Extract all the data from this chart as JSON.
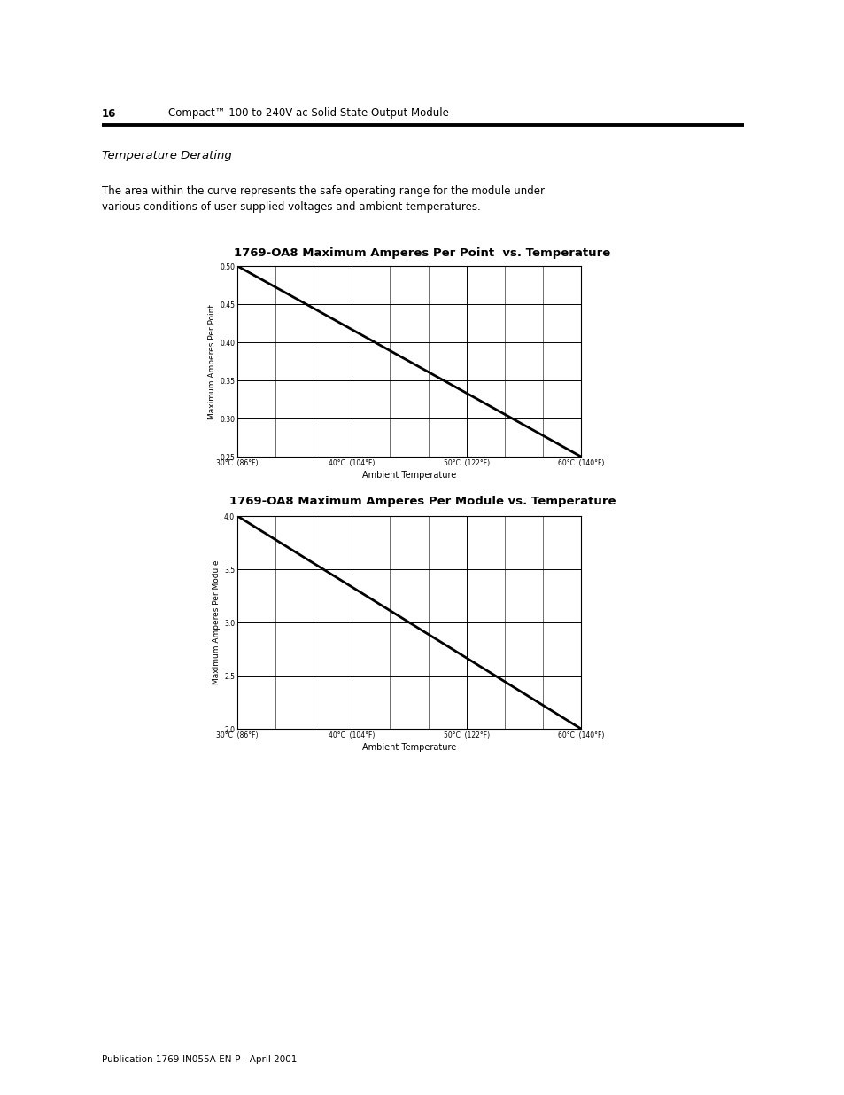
{
  "page_number": "16",
  "page_header": "Compact™ 100 to 240V ac Solid State Output Module",
  "section_title": "Temperature Derating",
  "body_line1": "The area within the curve represents the safe operating range for the module under",
  "body_line2": "various conditions of user supplied voltages and ambient temperatures.",
  "chart1": {
    "title": "1769-OA8 Maximum Amperes Per Point  vs. Temperature",
    "xlabel": "Ambient Temperature",
    "ylabel": "Maximum Amperes Per Point",
    "x_data": [
      30,
      60
    ],
    "y_data": [
      0.5,
      0.25
    ],
    "xtick_positions": [
      30,
      40,
      50,
      60
    ],
    "xtick_labels": [
      "30°C  (86°F)",
      "40°C  (104°F)",
      "50°C  (122°F)",
      "60°C  (140°F)"
    ],
    "ytick_positions": [
      0.25,
      0.3,
      0.35,
      0.4,
      0.45,
      0.5
    ],
    "ytick_labels": [
      "0.25",
      "0.30",
      "0.35",
      "0.40",
      "0.45",
      "0.50"
    ],
    "xlim": [
      30,
      60
    ],
    "ylim": [
      0.25,
      0.5
    ],
    "minor_xticks": [
      33.33,
      36.67,
      43.33,
      46.67,
      53.33,
      56.67
    ]
  },
  "chart2": {
    "title": "1769-OA8 Maximum Amperes Per Module vs. Temperature",
    "xlabel": "Ambient Temperature",
    "ylabel": "Maximum Amperes Per Module",
    "x_data": [
      30,
      60
    ],
    "y_data": [
      4.0,
      2.0
    ],
    "xtick_positions": [
      30,
      40,
      50,
      60
    ],
    "xtick_labels": [
      "30°C  (86°F)",
      "40°C  (104°F)",
      "50°C  (122°F)",
      "60°C  (140°F)"
    ],
    "ytick_positions": [
      2.0,
      2.5,
      3.0,
      3.5,
      4.0
    ],
    "ytick_labels": [
      "2.0",
      "2.5",
      "3.0",
      "3.5",
      "4.0"
    ],
    "xlim": [
      30,
      60
    ],
    "ylim": [
      2.0,
      4.0
    ],
    "minor_xticks": [
      33.33,
      36.67,
      43.33,
      46.67,
      53.33,
      56.67
    ]
  },
  "footer_text": "Publication 1769-IN055A-EN-P - April 2001",
  "line_color": "#000000",
  "line_width": 2.0,
  "grid_color": "#000000",
  "grid_linewidth": 0.7,
  "background_color": "#ffffff"
}
